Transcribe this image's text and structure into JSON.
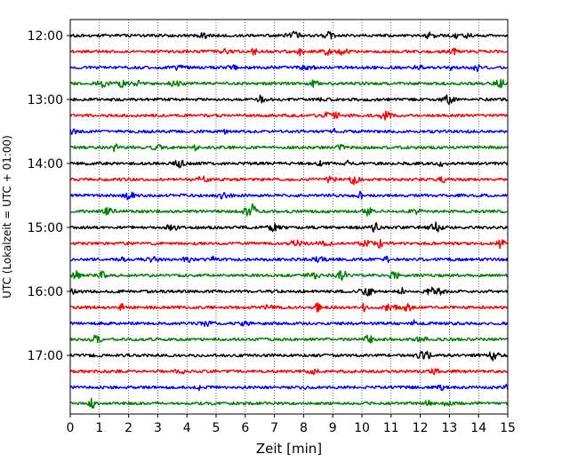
{
  "chart_data": {
    "type": "line",
    "subtype": "helicorder-seismogram",
    "xlabel": "Zeit  [min]",
    "ylabel": "UTC (Lokalzeit = UTC + 01:00)",
    "xlim": [
      0,
      15
    ],
    "x_ticks": [
      "0",
      "1",
      "2",
      "3",
      "4",
      "5",
      "6",
      "7",
      "8",
      "9",
      "10",
      "11",
      "12",
      "13",
      "14",
      "15"
    ],
    "y_tick_labels": [
      "12:00",
      "13:00",
      "14:00",
      "15:00",
      "16:00",
      "17:00"
    ],
    "grid": "vertical-dotted",
    "trace_colors": [
      "#000000",
      "#ff0000",
      "#0000ff",
      "#008000"
    ],
    "trace_interval_minutes": 15,
    "series": [
      {
        "start": "12:00",
        "color": "#000000"
      },
      {
        "start": "12:15",
        "color": "#ff0000"
      },
      {
        "start": "12:30",
        "color": "#0000ff"
      },
      {
        "start": "12:45",
        "color": "#008000"
      },
      {
        "start": "13:00",
        "color": "#000000"
      },
      {
        "start": "13:15",
        "color": "#ff0000"
      },
      {
        "start": "13:30",
        "color": "#0000ff"
      },
      {
        "start": "13:45",
        "color": "#008000"
      },
      {
        "start": "14:00",
        "color": "#000000"
      },
      {
        "start": "14:15",
        "color": "#ff0000"
      },
      {
        "start": "14:30",
        "color": "#0000ff"
      },
      {
        "start": "14:45",
        "color": "#008000"
      },
      {
        "start": "15:00",
        "color": "#000000"
      },
      {
        "start": "15:15",
        "color": "#ff0000"
      },
      {
        "start": "15:30",
        "color": "#0000ff"
      },
      {
        "start": "15:45",
        "color": "#008000"
      },
      {
        "start": "16:00",
        "color": "#000000"
      },
      {
        "start": "16:15",
        "color": "#ff0000"
      },
      {
        "start": "16:30",
        "color": "#0000ff"
      },
      {
        "start": "16:45",
        "color": "#008000"
      },
      {
        "start": "17:00",
        "color": "#000000"
      },
      {
        "start": "17:15",
        "color": "#ff0000"
      },
      {
        "start": "17:30",
        "color": "#0000ff"
      },
      {
        "start": "17:45",
        "color": "#008000"
      }
    ]
  }
}
